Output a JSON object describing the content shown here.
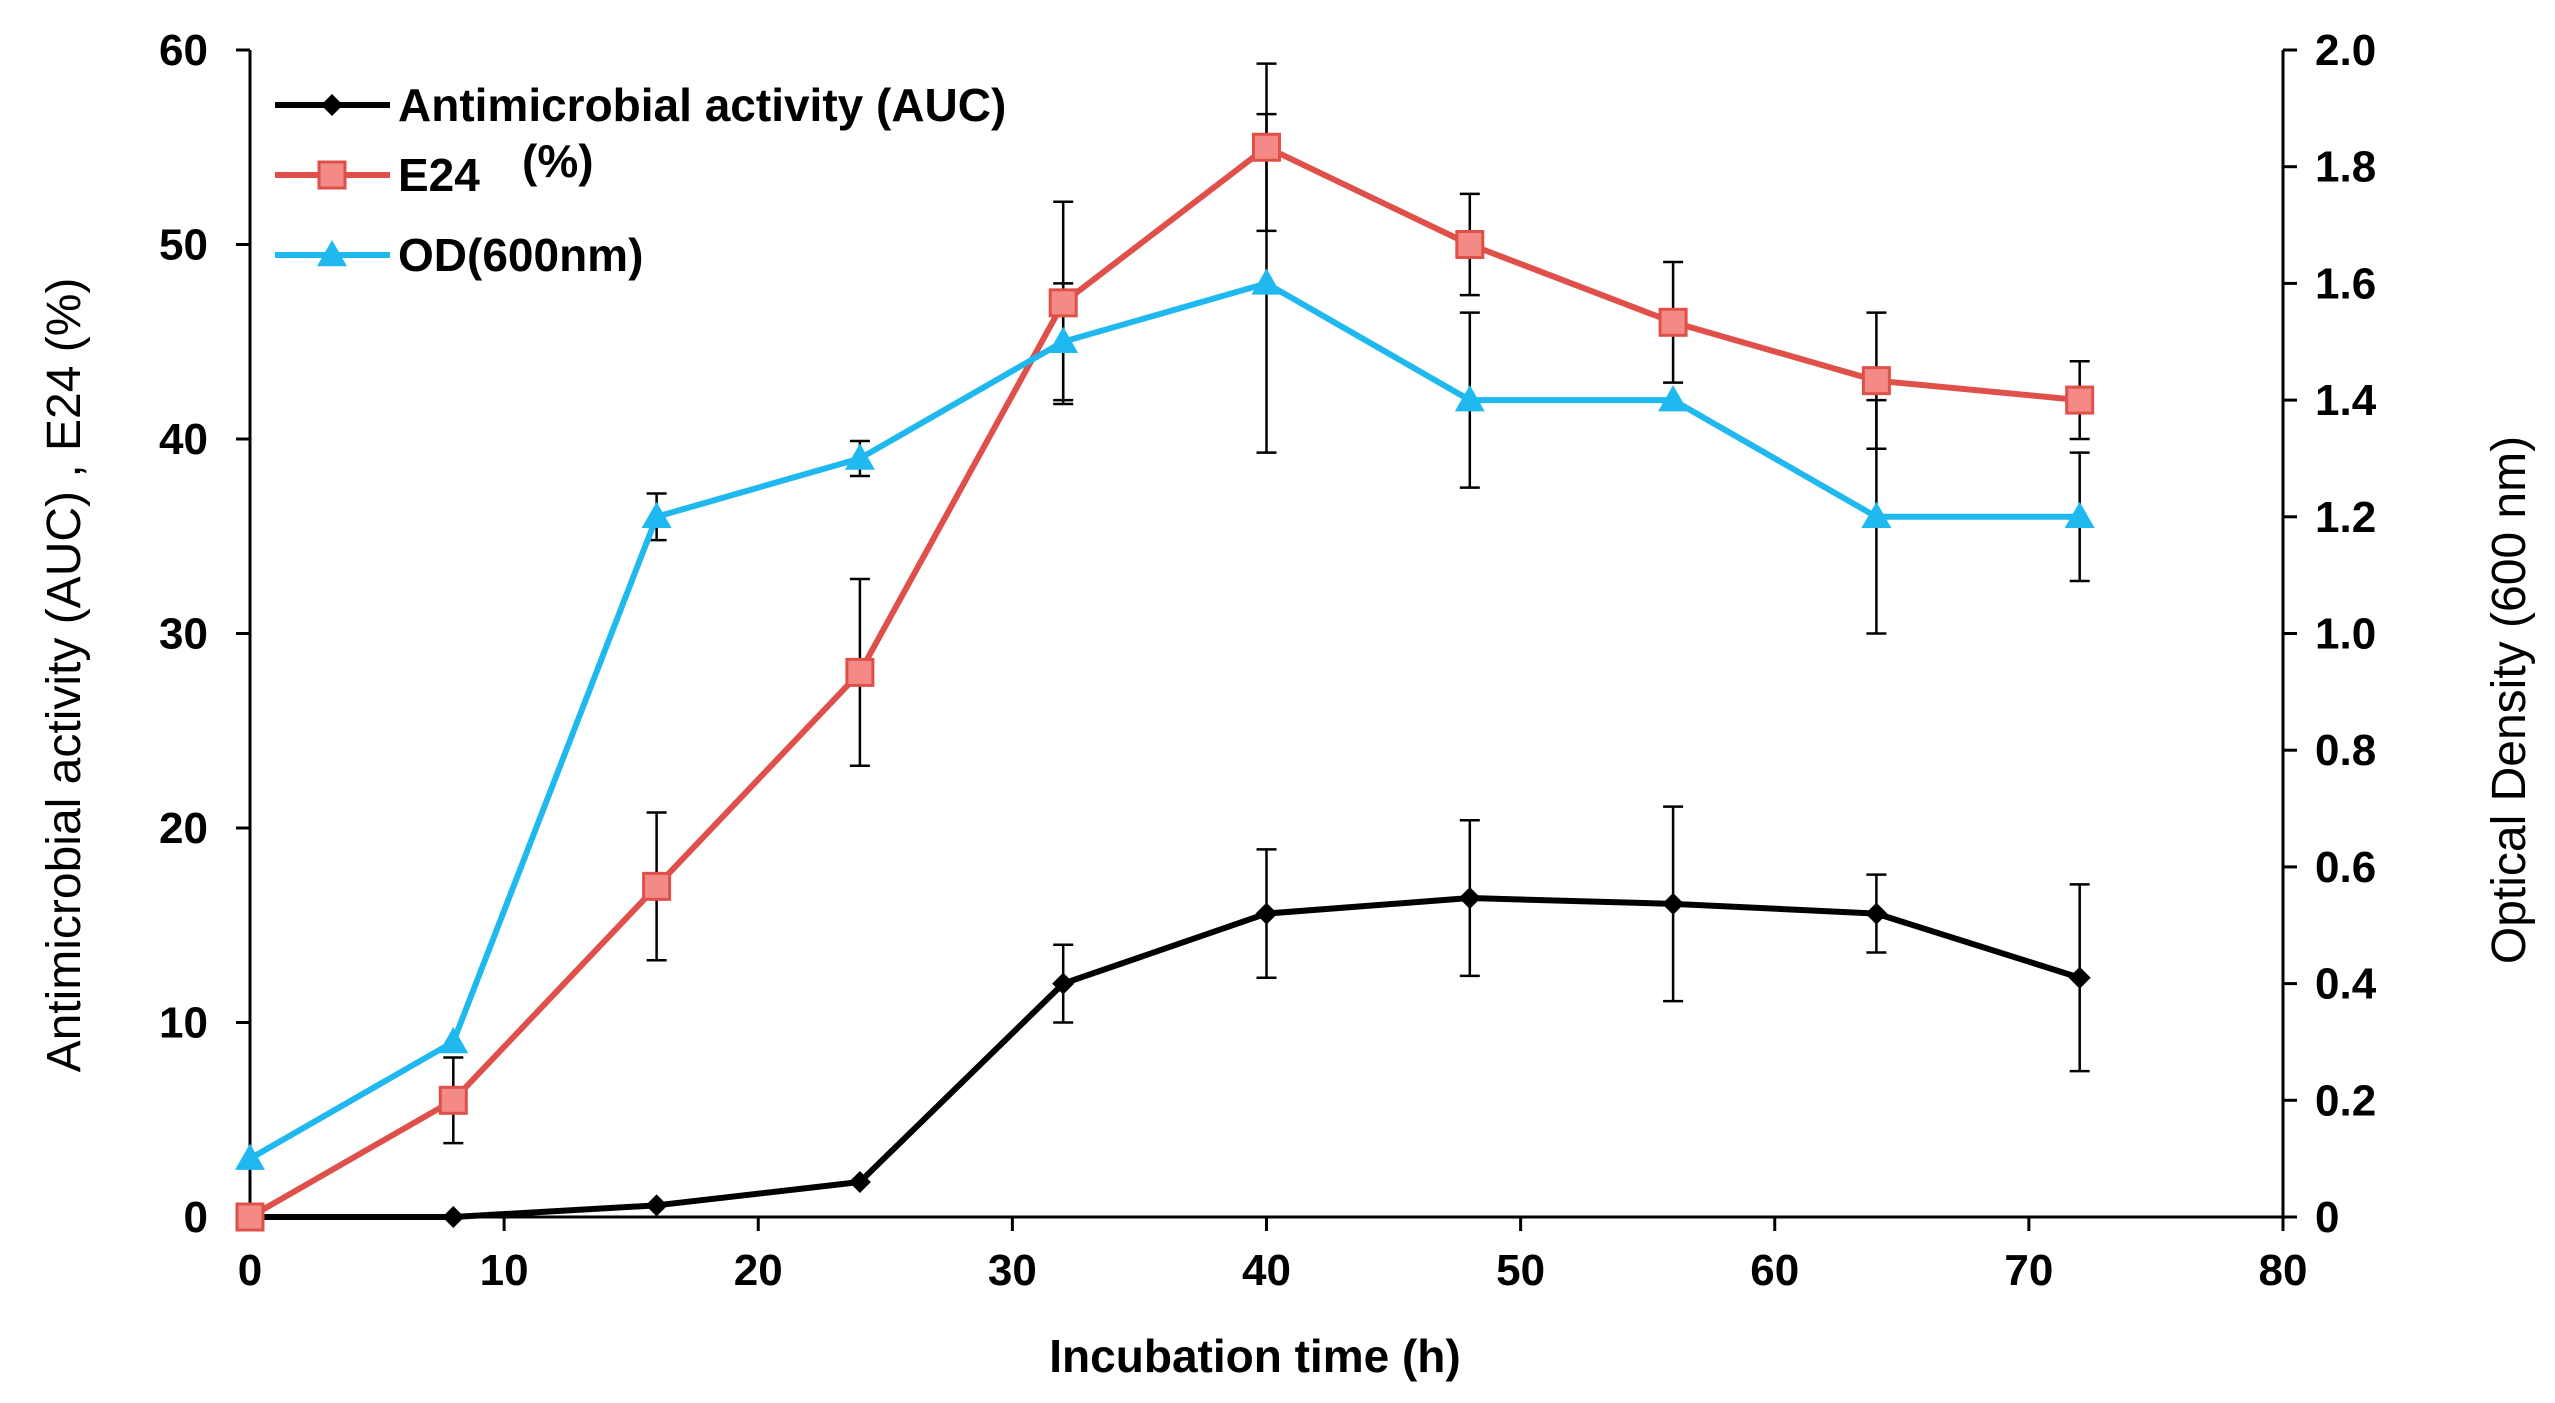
{
  "chart_data": {
    "type": "line",
    "title": "",
    "xlabel": "Incubation time (h)",
    "ylabel": "Antimicrobial activity (AUC) , E24 (%)",
    "y2label": "Optical Density (600 nm)",
    "xlim": [
      0,
      80
    ],
    "ylim": [
      0,
      60
    ],
    "y2lim": [
      0,
      2.0
    ],
    "x_ticks": [
      0,
      10,
      20,
      30,
      40,
      50,
      60,
      70,
      80
    ],
    "y_ticks": [
      0,
      10,
      20,
      30,
      40,
      50,
      60
    ],
    "y2_ticks": [
      "0",
      "0.2",
      "0.4",
      "0.6",
      "0.8",
      "1.0",
      "1.2",
      "1.4",
      "1.6",
      "1.8",
      "2.0"
    ],
    "grid": false,
    "legend_position": "top-left",
    "series": [
      {
        "name": "Antimicrobial activity (AUC)",
        "axis": "left",
        "color": "#000000",
        "marker": "diamond",
        "x": [
          0,
          8,
          16,
          24,
          32,
          40,
          48,
          56,
          64,
          72
        ],
        "values": [
          0,
          0,
          0.6,
          1.8,
          12,
          15.6,
          16.4,
          16.1,
          15.6,
          12.3
        ],
        "errors": [
          0,
          0,
          0,
          0,
          2,
          3.3,
          4,
          5,
          2,
          4.8
        ]
      },
      {
        "name": "E24",
        "name_suffix": "(%)",
        "axis": "left",
        "color": "#E0504B",
        "marker_color": "#F48A86",
        "marker": "square",
        "x": [
          0,
          8,
          16,
          24,
          32,
          40,
          48,
          56,
          64,
          72
        ],
        "values": [
          0,
          6,
          17,
          28,
          47,
          55,
          50,
          46,
          43,
          42
        ],
        "errors": [
          0,
          2.2,
          3.8,
          4.8,
          5.2,
          4.3,
          2.6,
          3.1,
          3.5,
          2
        ]
      },
      {
        "name": "OD(600nm)",
        "axis": "right",
        "color": "#1FB8EF",
        "marker": "triangle",
        "x": [
          0,
          8,
          16,
          24,
          32,
          40,
          48,
          56,
          64,
          72
        ],
        "values": [
          0.1,
          0.3,
          1.2,
          1.3,
          1.5,
          1.6,
          1.4,
          1.4,
          1.2,
          1.2
        ],
        "errors": [
          0,
          0,
          0.04,
          0.03,
          0.1,
          0.29,
          0.15,
          0,
          0.2,
          0.11
        ]
      }
    ]
  }
}
